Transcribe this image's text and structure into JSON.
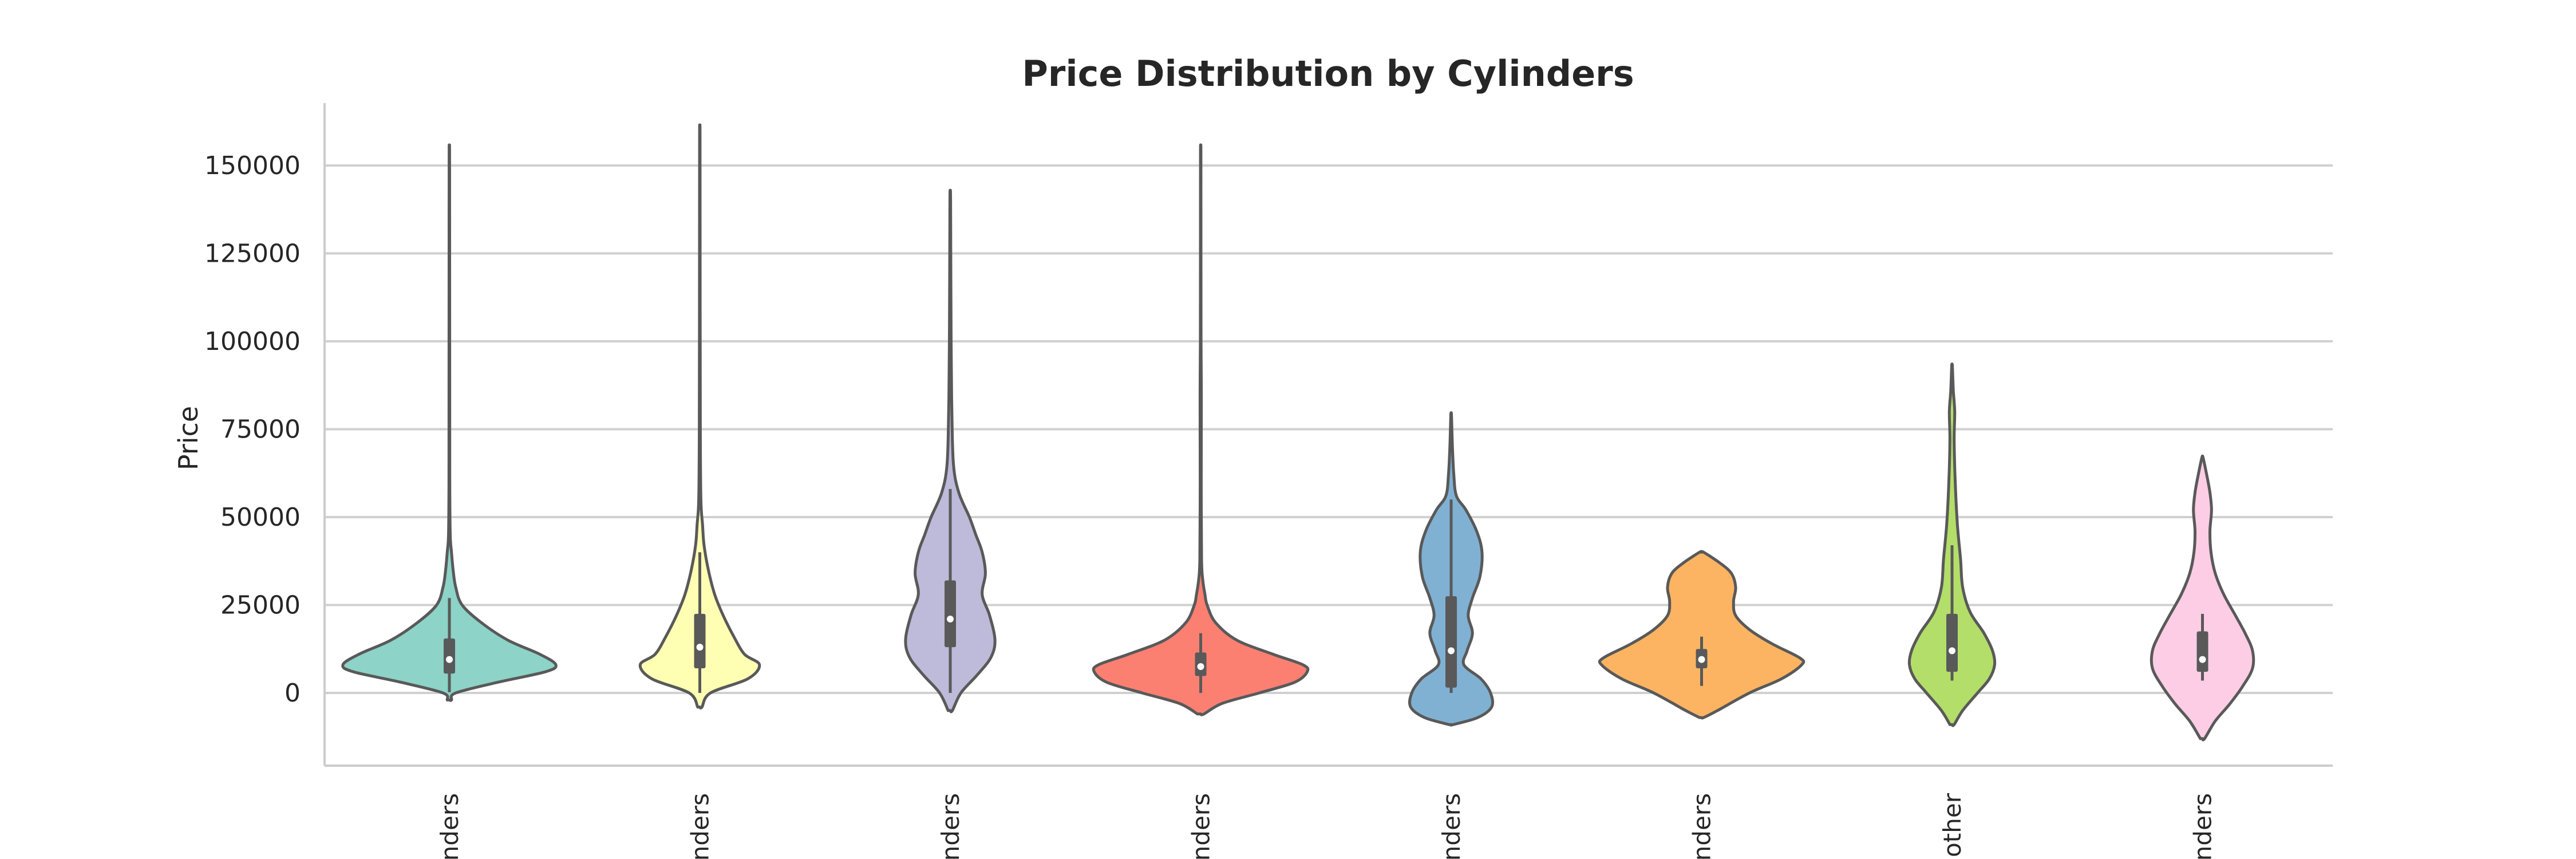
{
  "chart_data": {
    "type": "violin",
    "title": "Price Distribution by Cylinders",
    "xlabel": "",
    "ylabel": "Price",
    "ylim": [
      -17000,
      167000
    ],
    "yticks": [
      0,
      25000,
      50000,
      75000,
      100000,
      125000,
      150000
    ],
    "grid": "horizontal",
    "categories": [
      "linders",
      "linders",
      "linders",
      "linders",
      "linders",
      "linders",
      "other",
      "linders"
    ],
    "series": [
      {
        "color": "#8dd3c7",
        "min": -2000,
        "max": 152000,
        "q1": 5500,
        "median": 9500,
        "q3": 15500,
        "whisker_low": 200,
        "whisker_high": 27000,
        "density": [
          [
            -2000,
            0.02
          ],
          [
            0,
            0.06
          ],
          [
            3000,
            0.45
          ],
          [
            6000,
            0.9
          ],
          [
            8000,
            1.0
          ],
          [
            11000,
            0.85
          ],
          [
            15000,
            0.55
          ],
          [
            20000,
            0.3
          ],
          [
            25000,
            0.12
          ],
          [
            30000,
            0.06
          ],
          [
            35000,
            0.035
          ],
          [
            40000,
            0.02
          ],
          [
            45000,
            0.008
          ],
          [
            60000,
            0.004
          ],
          [
            100000,
            0.003
          ],
          [
            152000,
            0.002
          ]
        ]
      },
      {
        "color": "#ffffb3",
        "min": -4000,
        "max": 158000,
        "q1": 7000,
        "median": 13000,
        "q3": 22500,
        "whisker_low": 0,
        "whisker_high": 40000,
        "density": [
          [
            -4000,
            0.02
          ],
          [
            0,
            0.1
          ],
          [
            4000,
            0.45
          ],
          [
            8000,
            0.56
          ],
          [
            11000,
            0.42
          ],
          [
            16000,
            0.32
          ],
          [
            22000,
            0.22
          ],
          [
            28000,
            0.14
          ],
          [
            35000,
            0.08
          ],
          [
            42000,
            0.04
          ],
          [
            48000,
            0.025
          ],
          [
            55000,
            0.01
          ],
          [
            75000,
            0.005
          ],
          [
            110000,
            0.003
          ],
          [
            158000,
            0.002
          ]
        ]
      },
      {
        "color": "#bebada",
        "min": -5000,
        "max": 140000,
        "q1": 13000,
        "median": 21000,
        "q3": 32000,
        "whisker_low": 0,
        "whisker_high": 58000,
        "density": [
          [
            -5000,
            0.02
          ],
          [
            0,
            0.1
          ],
          [
            5000,
            0.25
          ],
          [
            10000,
            0.38
          ],
          [
            15000,
            0.42
          ],
          [
            22000,
            0.37
          ],
          [
            28000,
            0.3
          ],
          [
            34000,
            0.33
          ],
          [
            40000,
            0.3
          ],
          [
            45000,
            0.24
          ],
          [
            50000,
            0.18
          ],
          [
            57000,
            0.08
          ],
          [
            65000,
            0.03
          ],
          [
            80000,
            0.015
          ],
          [
            100000,
            0.008
          ],
          [
            140000,
            0.003
          ]
        ]
      },
      {
        "color": "#fb8072",
        "min": -6000,
        "max": 152000,
        "q1": 4800,
        "median": 7500,
        "q3": 11500,
        "whisker_low": 0,
        "whisker_high": 17000,
        "density": [
          [
            -6000,
            0.03
          ],
          [
            -3000,
            0.2
          ],
          [
            0,
            0.55
          ],
          [
            3000,
            0.88
          ],
          [
            6000,
            1.0
          ],
          [
            8000,
            0.96
          ],
          [
            11000,
            0.68
          ],
          [
            15000,
            0.34
          ],
          [
            20000,
            0.14
          ],
          [
            25000,
            0.06
          ],
          [
            28000,
            0.04
          ],
          [
            32000,
            0.02
          ],
          [
            38000,
            0.008
          ],
          [
            60000,
            0.005
          ],
          [
            85000,
            0.006
          ],
          [
            100000,
            0.003
          ],
          [
            152000,
            0.002
          ]
        ]
      },
      {
        "color": "#80b1d3",
        "min": -9000,
        "max": 79000,
        "q1": 1500,
        "median": 12000,
        "q3": 27500,
        "whisker_low": 0,
        "whisker_high": 55000,
        "density": [
          [
            -9000,
            0.02
          ],
          [
            -7000,
            0.25
          ],
          [
            -4000,
            0.38
          ],
          [
            0,
            0.37
          ],
          [
            4000,
            0.28
          ],
          [
            8000,
            0.12
          ],
          [
            12000,
            0.15
          ],
          [
            17000,
            0.2
          ],
          [
            22000,
            0.16
          ],
          [
            27000,
            0.2
          ],
          [
            33000,
            0.27
          ],
          [
            40000,
            0.29
          ],
          [
            46000,
            0.24
          ],
          [
            52000,
            0.14
          ],
          [
            56000,
            0.05
          ],
          [
            62000,
            0.025
          ],
          [
            70000,
            0.012
          ],
          [
            79000,
            0.003
          ]
        ]
      },
      {
        "color": "#fdb462",
        "min": -7000,
        "max": 40000,
        "q1": 7000,
        "median": 9500,
        "q3": 12500,
        "whisker_low": 2000,
        "whisker_high": 16000,
        "density": [
          [
            -7000,
            0.02
          ],
          [
            -5000,
            0.15
          ],
          [
            0,
            0.45
          ],
          [
            4000,
            0.75
          ],
          [
            8000,
            0.94
          ],
          [
            10000,
            0.92
          ],
          [
            14000,
            0.66
          ],
          [
            18000,
            0.45
          ],
          [
            22000,
            0.32
          ],
          [
            26000,
            0.3
          ],
          [
            30000,
            0.32
          ],
          [
            34000,
            0.28
          ],
          [
            37000,
            0.17
          ],
          [
            40000,
            0.02
          ]
        ]
      },
      {
        "color": "#b3de69",
        "min": -9000,
        "max": 93000,
        "q1": 6000,
        "median": 12000,
        "q3": 22500,
        "whisker_low": 3500,
        "whisker_high": 42000,
        "density": [
          [
            -9000,
            0.02
          ],
          [
            -5000,
            0.1
          ],
          [
            0,
            0.24
          ],
          [
            4000,
            0.35
          ],
          [
            8000,
            0.4
          ],
          [
            12000,
            0.38
          ],
          [
            17000,
            0.3
          ],
          [
            23000,
            0.17
          ],
          [
            30000,
            0.1
          ],
          [
            38000,
            0.08
          ],
          [
            48000,
            0.05
          ],
          [
            60000,
            0.03
          ],
          [
            72000,
            0.02
          ],
          [
            80000,
            0.025
          ],
          [
            86000,
            0.012
          ],
          [
            93000,
            0.003
          ]
        ]
      },
      {
        "color": "#fccde5",
        "min": -13000,
        "max": 67000,
        "q1": 6000,
        "median": 9500,
        "q3": 17500,
        "whisker_low": 3500,
        "whisker_high": 22500,
        "density": [
          [
            -13000,
            0.02
          ],
          [
            -8000,
            0.12
          ],
          [
            -3000,
            0.26
          ],
          [
            2000,
            0.38
          ],
          [
            7000,
            0.47
          ],
          [
            12000,
            0.47
          ],
          [
            17000,
            0.4
          ],
          [
            22000,
            0.31
          ],
          [
            28000,
            0.2
          ],
          [
            34000,
            0.12
          ],
          [
            40000,
            0.08
          ],
          [
            46000,
            0.07
          ],
          [
            52000,
            0.085
          ],
          [
            57000,
            0.07
          ],
          [
            62000,
            0.04
          ],
          [
            67000,
            0.005
          ]
        ]
      }
    ]
  }
}
